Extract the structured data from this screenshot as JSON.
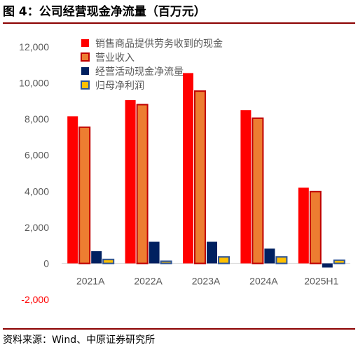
{
  "header": {
    "title": "图 4：公司经营现金净流量（百万元）"
  },
  "footer": {
    "source": "资料来源：Wind、中原证券研究所"
  },
  "colors": {
    "series1": "#ff0000",
    "series2": "#ed7d31",
    "series2_border": "#c00000",
    "series3": "#002060",
    "series4": "#ffc000",
    "series4_border": "#2f5597",
    "axis_text": "#595959",
    "negative_text": "#ff0000"
  },
  "chart_data": {
    "type": "bar",
    "title": "",
    "xlabel": "",
    "ylabel": "",
    "categories": [
      "2021A",
      "2022A",
      "2023A",
      "2024A",
      "2025H1"
    ],
    "ylim": [
      -2000,
      12000
    ],
    "yticks": [
      -2000,
      0,
      2000,
      4000,
      6000,
      8000,
      10000,
      12000
    ],
    "ytick_labels": [
      "-2,000",
      "0",
      "2,000",
      "4,000",
      "6,000",
      "8,000",
      "10,000",
      "12,000"
    ],
    "grid": false,
    "legend_position": "top-center",
    "series": [
      {
        "name": "销售商品提供劳务收到的现金",
        "values": [
          8150,
          9050,
          10550,
          8500,
          4200
        ]
      },
      {
        "name": "营业收入",
        "values": [
          7550,
          8800,
          9550,
          8050,
          3980
        ]
      },
      {
        "name": "经营活动现金净流量",
        "values": [
          680,
          1200,
          1200,
          820,
          -230
        ]
      },
      {
        "name": "归母净利润",
        "values": [
          220,
          120,
          360,
          360,
          180
        ]
      }
    ]
  }
}
